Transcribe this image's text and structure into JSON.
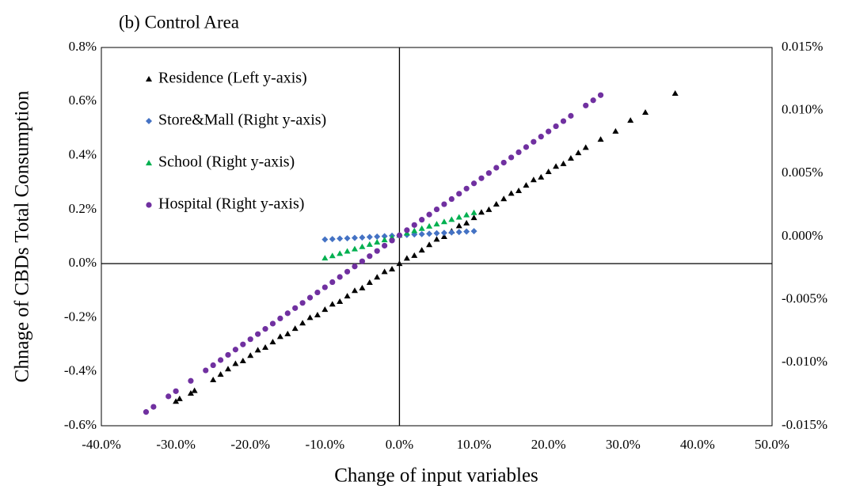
{
  "chart_data": {
    "type": "scatter",
    "title": "(b) Control Area",
    "xlabel": "Change of input variables",
    "ylabel": "Chnage of CBDs Total Consumption",
    "xlim": [
      -40,
      50
    ],
    "xticks": [
      {
        "value": -40,
        "label": "-40.0%"
      },
      {
        "value": -30,
        "label": "-30.0%"
      },
      {
        "value": -20,
        "label": "-20.0%"
      },
      {
        "value": -10,
        "label": "-10.0%"
      },
      {
        "value": 0,
        "label": "0.0%"
      },
      {
        "value": 10,
        "label": "10.0%"
      },
      {
        "value": 20,
        "label": "20.0%"
      },
      {
        "value": 30,
        "label": "30.0%"
      },
      {
        "value": 40,
        "label": "40.0%"
      },
      {
        "value": 50,
        "label": "50.0%"
      }
    ],
    "ylim": [
      -0.6,
      0.8
    ],
    "yticks": [
      {
        "value": 0.8,
        "label": "0.8%"
      },
      {
        "value": 0.6,
        "label": "0.6%"
      },
      {
        "value": 0.4,
        "label": "0.4%"
      },
      {
        "value": 0.2,
        "label": "0.2%"
      },
      {
        "value": 0,
        "label": "0.0%"
      },
      {
        "value": -0.2,
        "label": "-0.2%"
      },
      {
        "value": -0.4,
        "label": "-0.4%"
      },
      {
        "value": -0.6,
        "label": "-0.6%"
      }
    ],
    "y2lim": [
      -0.015,
      0.015
    ],
    "y2ticks": [
      {
        "value": 0.015,
        "label": "0.015%"
      },
      {
        "value": 0.01,
        "label": "0.010%"
      },
      {
        "value": 0.005,
        "label": "0.005%"
      },
      {
        "value": 0,
        "label": "0.000%"
      },
      {
        "value": -0.005,
        "label": "-0.005%"
      },
      {
        "value": -0.01,
        "label": "-0.010%"
      },
      {
        "value": -0.015,
        "label": "-0.015%"
      }
    ],
    "legend": "upper left",
    "series": [
      {
        "name": "Residence (Left y-axis)",
        "color": "#000000",
        "marker": "triangle",
        "axis": "y",
        "x": [
          -30,
          -29.5,
          -28,
          -27.5,
          -25,
          -24,
          -23,
          -22,
          -21,
          -20,
          -19,
          -18,
          -17,
          -16,
          -15,
          -14,
          -13,
          -12,
          -11,
          -10,
          -9,
          -8,
          -7,
          -6,
          -5,
          -4,
          -3,
          -2,
          -1,
          0,
          1,
          2,
          3,
          4,
          5,
          6,
          7,
          8,
          9,
          10,
          11,
          12,
          13,
          14,
          15,
          16,
          17,
          18,
          19,
          20,
          21,
          22,
          23,
          24,
          25,
          27,
          29,
          31,
          33,
          37
        ],
        "values": [
          -0.51,
          -0.5,
          -0.48,
          -0.47,
          -0.43,
          -0.41,
          -0.39,
          -0.37,
          -0.36,
          -0.34,
          -0.32,
          -0.31,
          -0.29,
          -0.27,
          -0.26,
          -0.24,
          -0.22,
          -0.2,
          -0.19,
          -0.17,
          -0.15,
          -0.14,
          -0.12,
          -0.1,
          -0.09,
          -0.07,
          -0.05,
          -0.03,
          -0.02,
          0,
          0.02,
          0.03,
          0.05,
          0.07,
          0.09,
          0.1,
          0.12,
          0.14,
          0.15,
          0.17,
          0.19,
          0.2,
          0.22,
          0.24,
          0.26,
          0.27,
          0.29,
          0.31,
          0.32,
          0.34,
          0.36,
          0.37,
          0.39,
          0.41,
          0.43,
          0.46,
          0.49,
          0.53,
          0.56,
          0.63
        ]
      },
      {
        "name": "Store&Mall (Right y-axis)",
        "color": "#4472c4",
        "marker": "diamond",
        "axis": "y2",
        "x": [
          -10,
          -9,
          -8,
          -7,
          -6,
          -5,
          -4,
          -3,
          -2,
          -1,
          0,
          1,
          2,
          3,
          4,
          5,
          6,
          7,
          8,
          9,
          10
        ],
        "values": [
          -0.00023,
          -0.0002,
          -0.00016,
          -0.00013,
          -0.0001,
          -7e-05,
          -3e-05,
          0,
          3e-05,
          7e-05,
          0.0001,
          0.00013,
          0.00017,
          0.0002,
          0.00023,
          0.00027,
          0.0003,
          0.00033,
          0.00036,
          0.0004,
          0.00043
        ]
      },
      {
        "name": "School (Right y-axis)",
        "color": "#00b050",
        "marker": "triangle",
        "axis": "y2",
        "x": [
          -10,
          -9,
          -8,
          -7,
          -6,
          -5,
          -4,
          -3,
          -2,
          -1,
          0,
          1,
          2,
          3,
          4,
          5,
          6,
          7,
          8,
          9,
          10
        ],
        "values": [
          -0.0017,
          -0.00152,
          -0.00134,
          -0.00116,
          -0.00098,
          -0.0008,
          -0.00062,
          -0.00044,
          -0.00026,
          -8e-05,
          0.0001,
          0.00028,
          0.00046,
          0.00064,
          0.00082,
          0.001,
          0.00118,
          0.00136,
          0.00154,
          0.00172,
          0.0019
        ]
      },
      {
        "name": "Hospital (Right y-axis)",
        "color": "#7030a0",
        "marker": "circle",
        "axis": "y2",
        "x": [
          -34,
          -33,
          -31,
          -30,
          -28,
          -26,
          -25,
          -24,
          -23,
          -22,
          -21,
          -20,
          -19,
          -18,
          -17,
          -16,
          -15,
          -14,
          -13,
          -12,
          -11,
          -10,
          -9,
          -8,
          -7,
          -6,
          -5,
          -4,
          -3,
          -2,
          -1,
          0,
          1,
          2,
          3,
          4,
          5,
          6,
          7,
          8,
          9,
          10,
          11,
          12,
          13,
          14,
          15,
          16,
          17,
          18,
          19,
          20,
          21,
          22,
          23,
          25,
          26,
          27
        ],
        "values": [
          -0.01391,
          -0.0135,
          -0.01267,
          -0.01226,
          -0.01144,
          -0.01061,
          -0.0102,
          -0.00979,
          -0.00938,
          -0.00896,
          -0.00855,
          -0.00814,
          -0.00773,
          -0.00732,
          -0.0069,
          -0.00649,
          -0.00608,
          -0.00567,
          -0.00526,
          -0.00484,
          -0.00443,
          -0.00402,
          -0.00361,
          -0.0032,
          -0.00278,
          -0.00237,
          -0.00196,
          -0.00155,
          -0.00114,
          -0.00072,
          -0.00031,
          0.0001,
          0.00051,
          0.00092,
          0.00134,
          0.00175,
          0.00216,
          0.00257,
          0.00298,
          0.0034,
          0.00381,
          0.00422,
          0.00463,
          0.00504,
          0.00546,
          0.00587,
          0.00628,
          0.00669,
          0.0071,
          0.00752,
          0.00793,
          0.00834,
          0.00875,
          0.00916,
          0.00958,
          0.0104,
          0.01081,
          0.01122
        ]
      }
    ]
  }
}
